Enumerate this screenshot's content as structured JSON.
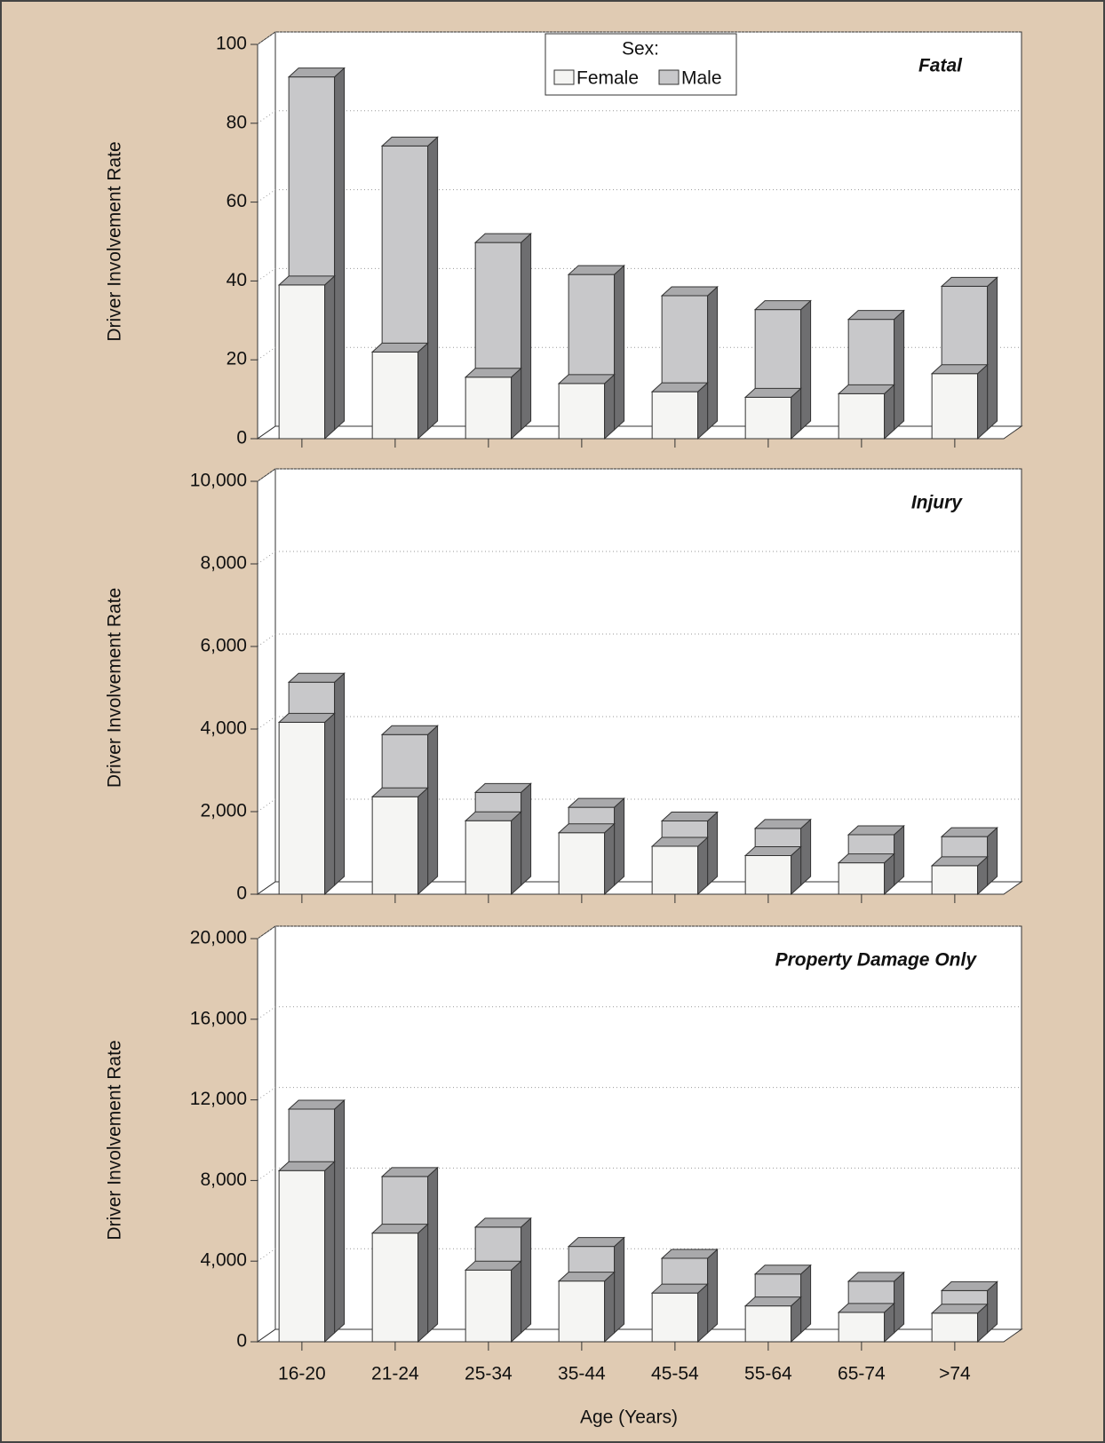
{
  "chart_data": [
    {
      "type": "bar",
      "title": "Fatal",
      "ylabel": "Driver Involvement Rate",
      "legend": true,
      "legend_title": "Sex:",
      "categories": [
        null,
        null,
        null,
        null,
        null,
        null,
        null,
        null
      ],
      "series": [
        {
          "name": "Female",
          "color": "#f5f5f3",
          "values": [
            39,
            22,
            15.6,
            14,
            11.9,
            10.5,
            11.4,
            16.5
          ]
        },
        {
          "name": "Male",
          "color": "#c8c8ca",
          "values": [
            89.5,
            72,
            47.5,
            39.4,
            34,
            30.5,
            28,
            36.4
          ]
        }
      ],
      "ylim": [
        0,
        100
      ],
      "yticks": [
        0,
        20,
        40,
        60,
        80,
        100
      ],
      "grid": true
    },
    {
      "type": "bar",
      "title": "Injury",
      "ylabel": "Driver Involvement Rate",
      "categories": [
        null,
        null,
        null,
        null,
        null,
        null,
        null,
        null
      ],
      "series": [
        {
          "color": "#f5f5f3",
          "values": [
            4165,
            2360,
            1780,
            1490,
            1160,
            935,
            760,
            690
          ]
        },
        {
          "color": "#c8c8ca",
          "values": [
            4920,
            3650,
            2250,
            1890,
            1560,
            1380,
            1225,
            1180
          ]
        }
      ],
      "ylim": [
        0,
        10000
      ],
      "yticks": [
        0,
        {
          "value": 2000,
          "label": "2,000"
        },
        {
          "value": 4000,
          "label": "4,000"
        },
        {
          "value": 6000,
          "label": "6,000"
        },
        {
          "value": 8000,
          "label": "8,000"
        },
        {
          "value": 10000,
          "label": "10,000"
        }
      ],
      "grid": true
    },
    {
      "type": "bar",
      "title": "Property Damage Only",
      "ylabel": "Driver Involvement Rate",
      "xlabel": "Age (Years)",
      "categories": [
        "16-20",
        "21-24",
        "25-34",
        "35-44",
        "45-54",
        "55-64",
        "65-74",
        ">74"
      ],
      "series": [
        {
          "color": "#f5f5f3",
          "values": [
            8490,
            5390,
            3560,
            3010,
            2420,
            1780,
            1460,
            1420
          ]
        },
        {
          "color": "#c8c8ca",
          "values": [
            11100,
            7760,
            5250,
            4290,
            3700,
            2920,
            2560,
            2100
          ]
        }
      ],
      "ylim": [
        0,
        20000
      ],
      "yticks": [
        0,
        {
          "value": 4000,
          "label": "4,000"
        },
        {
          "value": 8000,
          "label": "8,000"
        },
        {
          "value": 12000,
          "label": "12,000"
        },
        {
          "value": 16000,
          "label": "16,000"
        },
        {
          "value": 20000,
          "label": "20,000"
        }
      ],
      "grid": true
    }
  ]
}
